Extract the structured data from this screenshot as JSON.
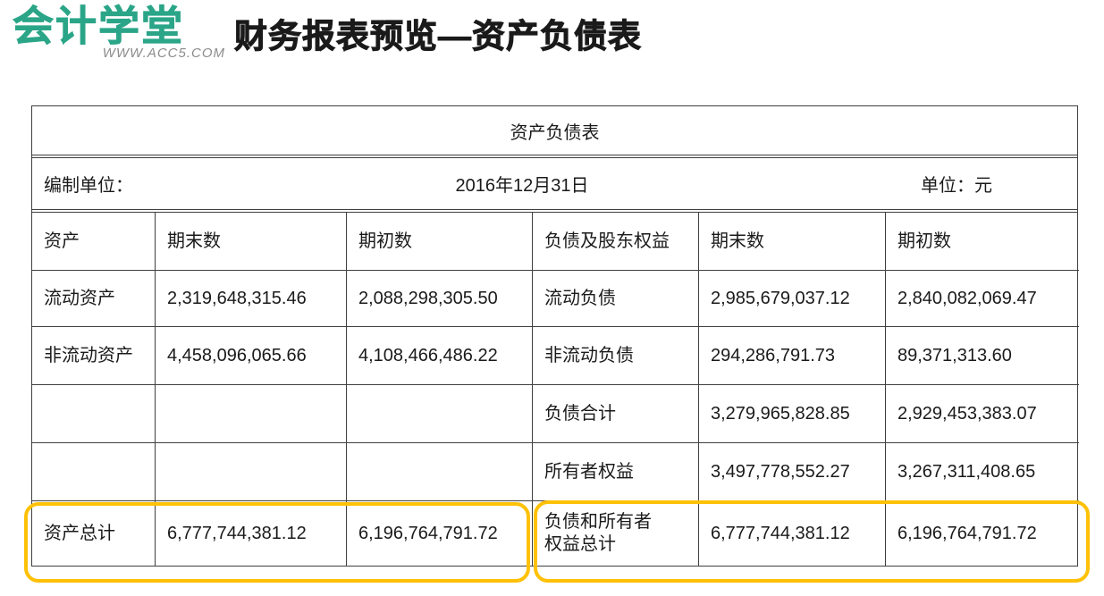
{
  "colors": {
    "highlight": "#FFC107",
    "brand_green": "#2BA588",
    "url_gray": "#8C8C8C",
    "border_dark": "#3F3F3F",
    "text": "#1A1A1A"
  },
  "logo": {
    "brand": "会计学堂",
    "url": "WWW.ACC5.COM"
  },
  "page_title": "财务报表预览—资产负债表",
  "table": {
    "title": "资产负债表",
    "info": {
      "prepared_by_label": "编制单位：",
      "date": "2016年12月31日",
      "unit_label": "单位：元"
    },
    "headers": [
      "资产",
      "期末数",
      "期初数",
      "负债及股东权益",
      "期末数",
      "期初数"
    ],
    "rows": [
      [
        "流动资产",
        "2,319,648,315.46",
        "2,088,298,305.50",
        "流动负债",
        "2,985,679,037.12",
        "2,840,082,069.47"
      ],
      [
        "非流动资产",
        "4,458,096,065.66",
        "4,108,466,486.22",
        "非流动负债",
        "294,286,791.73",
        "89,371,313.60"
      ],
      [
        "",
        "",
        "",
        "负债合计",
        "3,279,965,828.85",
        "2,929,453,383.07"
      ],
      [
        "",
        "",
        "",
        "所有者权益",
        "3,497,778,552.27",
        "3,267,311,408.65"
      ],
      [
        "资产总计",
        "6,777,744,381.12",
        "6,196,764,791.72",
        "负债和所有者权益总计",
        "6,777,744,381.12",
        "6,196,764,791.72"
      ]
    ]
  }
}
